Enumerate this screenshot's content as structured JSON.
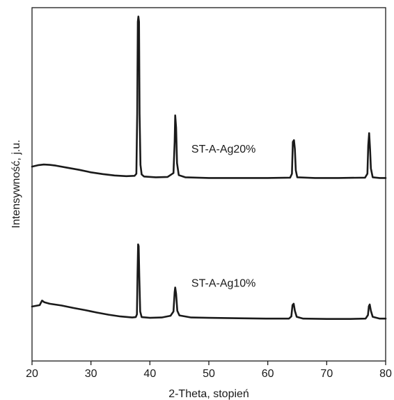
{
  "chart_data": {
    "type": "line",
    "xlabel": "2-Theta, stopień",
    "ylabel": "Intensywność, j.u.",
    "xlim": [
      20,
      80
    ],
    "ylim": [
      0,
      100
    ],
    "xticks": [
      20,
      30,
      40,
      50,
      60,
      70,
      80
    ],
    "yticks_shown": false,
    "grid": false,
    "legend": "none",
    "line_color": "#1a1a1a",
    "series": [
      {
        "name": "ST-A-Ag20%",
        "label_at": [
          52.5,
          59
        ],
        "points": [
          [
            20.0,
            55.0
          ],
          [
            21.0,
            55.4
          ],
          [
            22.0,
            55.6
          ],
          [
            23.0,
            55.5
          ],
          [
            24.0,
            55.3
          ],
          [
            26.0,
            54.7
          ],
          [
            28.0,
            54.1
          ],
          [
            30.0,
            53.4
          ],
          [
            32.0,
            52.9
          ],
          [
            34.0,
            52.5
          ],
          [
            36.0,
            52.3
          ],
          [
            37.4,
            52.4
          ],
          [
            37.7,
            53.0
          ],
          [
            37.85,
            70.0
          ],
          [
            37.95,
            96.0
          ],
          [
            38.05,
            97.5
          ],
          [
            38.15,
            96.0
          ],
          [
            38.25,
            70.0
          ],
          [
            38.4,
            55.5
          ],
          [
            38.6,
            52.8
          ],
          [
            39.0,
            52.2
          ],
          [
            41.0,
            52.0
          ],
          [
            43.0,
            52.1
          ],
          [
            44.0,
            53.2
          ],
          [
            44.2,
            62.0
          ],
          [
            44.3,
            69.5
          ],
          [
            44.45,
            66.0
          ],
          [
            44.6,
            56.0
          ],
          [
            44.9,
            52.6
          ],
          [
            46.0,
            52.0
          ],
          [
            50.0,
            51.8
          ],
          [
            55.0,
            51.8
          ],
          [
            60.0,
            51.8
          ],
          [
            63.8,
            51.9
          ],
          [
            64.1,
            53.0
          ],
          [
            64.25,
            62.0
          ],
          [
            64.45,
            62.5
          ],
          [
            64.6,
            60.0
          ],
          [
            64.75,
            54.0
          ],
          [
            65.0,
            52.0
          ],
          [
            68.0,
            51.8
          ],
          [
            72.0,
            51.8
          ],
          [
            76.5,
            51.9
          ],
          [
            76.9,
            53.0
          ],
          [
            77.05,
            61.0
          ],
          [
            77.2,
            64.5
          ],
          [
            77.35,
            60.0
          ],
          [
            77.5,
            54.5
          ],
          [
            77.8,
            52.0
          ],
          [
            79.0,
            51.8
          ],
          [
            80.0,
            51.8
          ]
        ]
      },
      {
        "name": "ST-A-Ag10%",
        "label_at": [
          52.5,
          21
        ],
        "points": [
          [
            20.0,
            15.4
          ],
          [
            21.3,
            15.8
          ],
          [
            21.7,
            17.1
          ],
          [
            22.1,
            16.6
          ],
          [
            23.0,
            16.2
          ],
          [
            25.0,
            15.7
          ],
          [
            27.0,
            15.0
          ],
          [
            29.0,
            14.4
          ],
          [
            31.0,
            13.7
          ],
          [
            33.0,
            13.1
          ],
          [
            35.0,
            12.6
          ],
          [
            37.0,
            12.3
          ],
          [
            37.6,
            12.4
          ],
          [
            37.8,
            13.2
          ],
          [
            37.9,
            25.0
          ],
          [
            38.0,
            33.0
          ],
          [
            38.1,
            32.5
          ],
          [
            38.2,
            24.0
          ],
          [
            38.35,
            14.0
          ],
          [
            38.6,
            12.4
          ],
          [
            40.0,
            12.2
          ],
          [
            42.0,
            12.3
          ],
          [
            43.5,
            12.8
          ],
          [
            44.0,
            14.0
          ],
          [
            44.2,
            19.5
          ],
          [
            44.3,
            20.8
          ],
          [
            44.45,
            19.0
          ],
          [
            44.65,
            14.2
          ],
          [
            45.0,
            12.9
          ],
          [
            47.0,
            12.3
          ],
          [
            50.0,
            12.2
          ],
          [
            55.0,
            12.1
          ],
          [
            60.0,
            12.0
          ],
          [
            63.6,
            12.0
          ],
          [
            64.0,
            12.6
          ],
          [
            64.2,
            15.8
          ],
          [
            64.4,
            16.2
          ],
          [
            64.6,
            14.2
          ],
          [
            64.9,
            12.5
          ],
          [
            66.0,
            12.0
          ],
          [
            70.0,
            11.9
          ],
          [
            74.0,
            11.9
          ],
          [
            76.6,
            12.0
          ],
          [
            77.0,
            13.0
          ],
          [
            77.15,
            15.5
          ],
          [
            77.3,
            16.0
          ],
          [
            77.5,
            14.2
          ],
          [
            77.8,
            12.5
          ],
          [
            79.0,
            12.0
          ],
          [
            80.0,
            12.0
          ]
        ]
      }
    ]
  }
}
